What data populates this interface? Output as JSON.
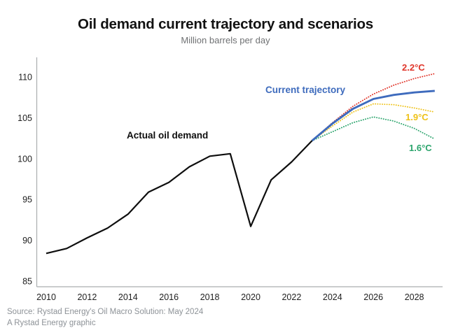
{
  "chart_data": {
    "type": "line",
    "title": "Oil demand current trajectory and scenarios",
    "subtitle": "Million barrels per day",
    "xlabel": "",
    "ylabel": "Million barrels per day",
    "x_ticks": [
      2010,
      2012,
      2014,
      2016,
      2018,
      2020,
      2022,
      2024,
      2026,
      2028
    ],
    "y_ticks": [
      85,
      90,
      95,
      100,
      105,
      110
    ],
    "xlim": [
      2009.5,
      2029.5
    ],
    "ylim": [
      84.3,
      112.2
    ],
    "grid": false,
    "legend_position": "inline-annotations",
    "series": [
      {
        "name": "Actual oil demand",
        "color": "#0e0e0e",
        "style": "solid",
        "x": [
          2010,
          2011,
          2012,
          2013,
          2014,
          2015,
          2016,
          2017,
          2018,
          2019,
          2020,
          2021,
          2022,
          2023
        ],
        "values": [
          88.4,
          89.0,
          90.3,
          91.5,
          93.2,
          95.9,
          97.1,
          99.0,
          100.3,
          100.6,
          91.7,
          97.4,
          99.6,
          102.2
        ]
      },
      {
        "name": "Current trajectory",
        "color": "#3e6bbd",
        "style": "solid",
        "x": [
          2023,
          2024,
          2025,
          2026,
          2027,
          2028,
          2029
        ],
        "values": [
          102.2,
          104.3,
          106.1,
          107.3,
          107.8,
          108.1,
          108.3
        ]
      },
      {
        "name": "2.2°C",
        "color": "#e0352a",
        "style": "dotted",
        "x": [
          2023,
          2024,
          2025,
          2026,
          2027,
          2028,
          2029
        ],
        "values": [
          102.2,
          104.4,
          106.4,
          107.9,
          109.0,
          109.8,
          110.4
        ]
      },
      {
        "name": "1.9°C",
        "color": "#eec117",
        "style": "dotted",
        "x": [
          2023,
          2024,
          2025,
          2026,
          2027,
          2028,
          2029
        ],
        "values": [
          102.2,
          104.0,
          105.7,
          106.7,
          106.6,
          106.2,
          105.7
        ]
      },
      {
        "name": "1.6°C",
        "color": "#2ba46c",
        "style": "dotted",
        "x": [
          2023,
          2024,
          2025,
          2026,
          2027,
          2028,
          2029
        ],
        "values": [
          102.2,
          103.3,
          104.4,
          105.1,
          104.6,
          103.7,
          102.4
        ]
      }
    ]
  },
  "footer": {
    "source": "Source: Rystad Energy's Oil Macro Solution: May 2024",
    "credit": "A Rystad Energy graphic"
  }
}
